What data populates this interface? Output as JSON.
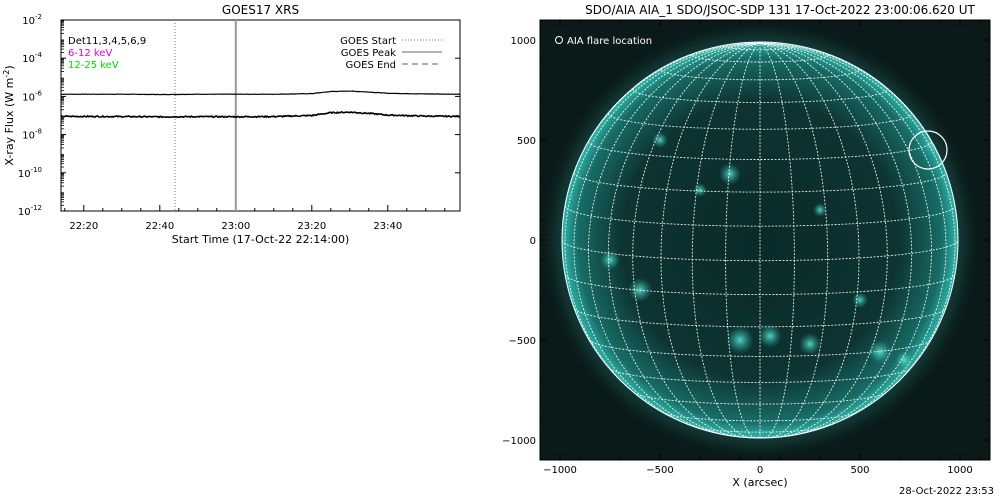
{
  "chart_data": [
    {
      "type": "line",
      "title": "GOES17 XRS",
      "xlabel": "Start Time (17-Oct-22 22:14:00)",
      "ylabel": "X-ray Flux (W m",
      "ylabel_sup": "-2",
      "ylabel_close": ")",
      "y_scale": "log",
      "ylim": [
        "1e-12",
        "1e-2"
      ],
      "xlim": [
        "22:14",
        "23:59"
      ],
      "x_ticks": [
        "22:20",
        "22:40",
        "23:00",
        "23:20",
        "23:40"
      ],
      "y_tick_labels": [
        {
          "base": "10",
          "exp": "-2",
          "exp_value": -2
        },
        {
          "base": "10",
          "exp": "-4",
          "exp_value": -4
        },
        {
          "base": "10",
          "exp": "-6",
          "exp_value": -6
        },
        {
          "base": "10",
          "exp": "-8",
          "exp_value": -8
        },
        {
          "base": "10",
          "exp": "-10",
          "exp_value": -10
        },
        {
          "base": "10",
          "exp": "-12",
          "exp_value": -12
        }
      ],
      "info_lines": [
        {
          "text": "Det11,3,4,5,6,9",
          "color": "#000000"
        },
        {
          "text": "6-12 keV",
          "color": "#dd00dd"
        },
        {
          "text": "12-25 keV",
          "color": "#00dd00"
        }
      ],
      "legend": {
        "placement": "top-right",
        "entries": [
          {
            "label": "GOES Start",
            "style": "dotted"
          },
          {
            "label": "GOES Peak",
            "style": "solid"
          },
          {
            "label": "GOES End",
            "style": "dashed"
          }
        ]
      },
      "markers": [
        {
          "name": "GOES Start",
          "time": "22:44",
          "style": "dotted"
        },
        {
          "name": "GOES Peak",
          "time": "23:00",
          "style": "solid"
        }
      ],
      "series": [
        {
          "color": "#000000",
          "points": [
            [
              "22:14",
              "1.3e-6"
            ],
            [
              "22:30",
              "1.3e-6"
            ],
            [
              "22:40",
              "1.25e-6"
            ],
            [
              "22:50",
              "1.3e-6"
            ],
            [
              "23:00",
              "1.3e-6"
            ],
            [
              "23:10",
              "1.3e-6"
            ],
            [
              "23:20",
              "1.4e-6"
            ],
            [
              "23:25",
              "1.8e-6"
            ],
            [
              "23:30",
              "1.9e-6"
            ],
            [
              "23:35",
              "1.7e-6"
            ],
            [
              "23:40",
              "1.45e-6"
            ],
            [
              "23:50",
              "1.35e-6"
            ],
            [
              "23:59",
              "1.3e-6"
            ]
          ]
        },
        {
          "color": "#000000",
          "points": [
            [
              "22:14",
              "9e-8"
            ],
            [
              "22:30",
              "8.8e-8"
            ],
            [
              "22:40",
              "8.5e-8"
            ],
            [
              "22:50",
              "8.7e-8"
            ],
            [
              "23:00",
              "8.6e-8"
            ],
            [
              "23:10",
              "8.8e-8"
            ],
            [
              "23:20",
              "1e-7"
            ],
            [
              "23:25",
              "1.4e-7"
            ],
            [
              "23:30",
              "1.5e-7"
            ],
            [
              "23:35",
              "1.3e-7"
            ],
            [
              "23:40",
              "1.05e-7"
            ],
            [
              "23:50",
              "9.3e-8"
            ],
            [
              "23:59",
              "9e-8"
            ]
          ]
        }
      ]
    },
    {
      "type": "heatmap",
      "title": "SDO/AIA AIA_1 SDO/JSOC-SDP 131 17-Oct-2022 23:00:06.620 UT",
      "xlabel": "X (arcsec)",
      "ylabel": "",
      "xlim": [
        -1100,
        1150
      ],
      "ylim": [
        -1100,
        1100
      ],
      "x_ticks": [
        -1000,
        -500,
        0,
        500,
        1000
      ],
      "y_ticks": [
        -1000,
        -500,
        0,
        500,
        1000
      ],
      "x_tick_labels": [
        "−1000",
        "−500",
        "0",
        "500",
        "1000"
      ],
      "y_tick_labels": [
        "−1000",
        "−500",
        "0",
        "500",
        "1000"
      ],
      "image_description_colors": {
        "background": "#0a1a18",
        "disk": "#0e3533",
        "bright": "#4fe6d9",
        "grid": "#ffffff"
      },
      "solar_radius_arcsec": 990,
      "grid_step_deg": 10,
      "legend_text": "AIA flare location",
      "flare_location": {
        "x": 840,
        "y": 450,
        "radius": 95
      }
    }
  ],
  "footer": {
    "timestamp": "28-Oct-2022 23:53"
  }
}
